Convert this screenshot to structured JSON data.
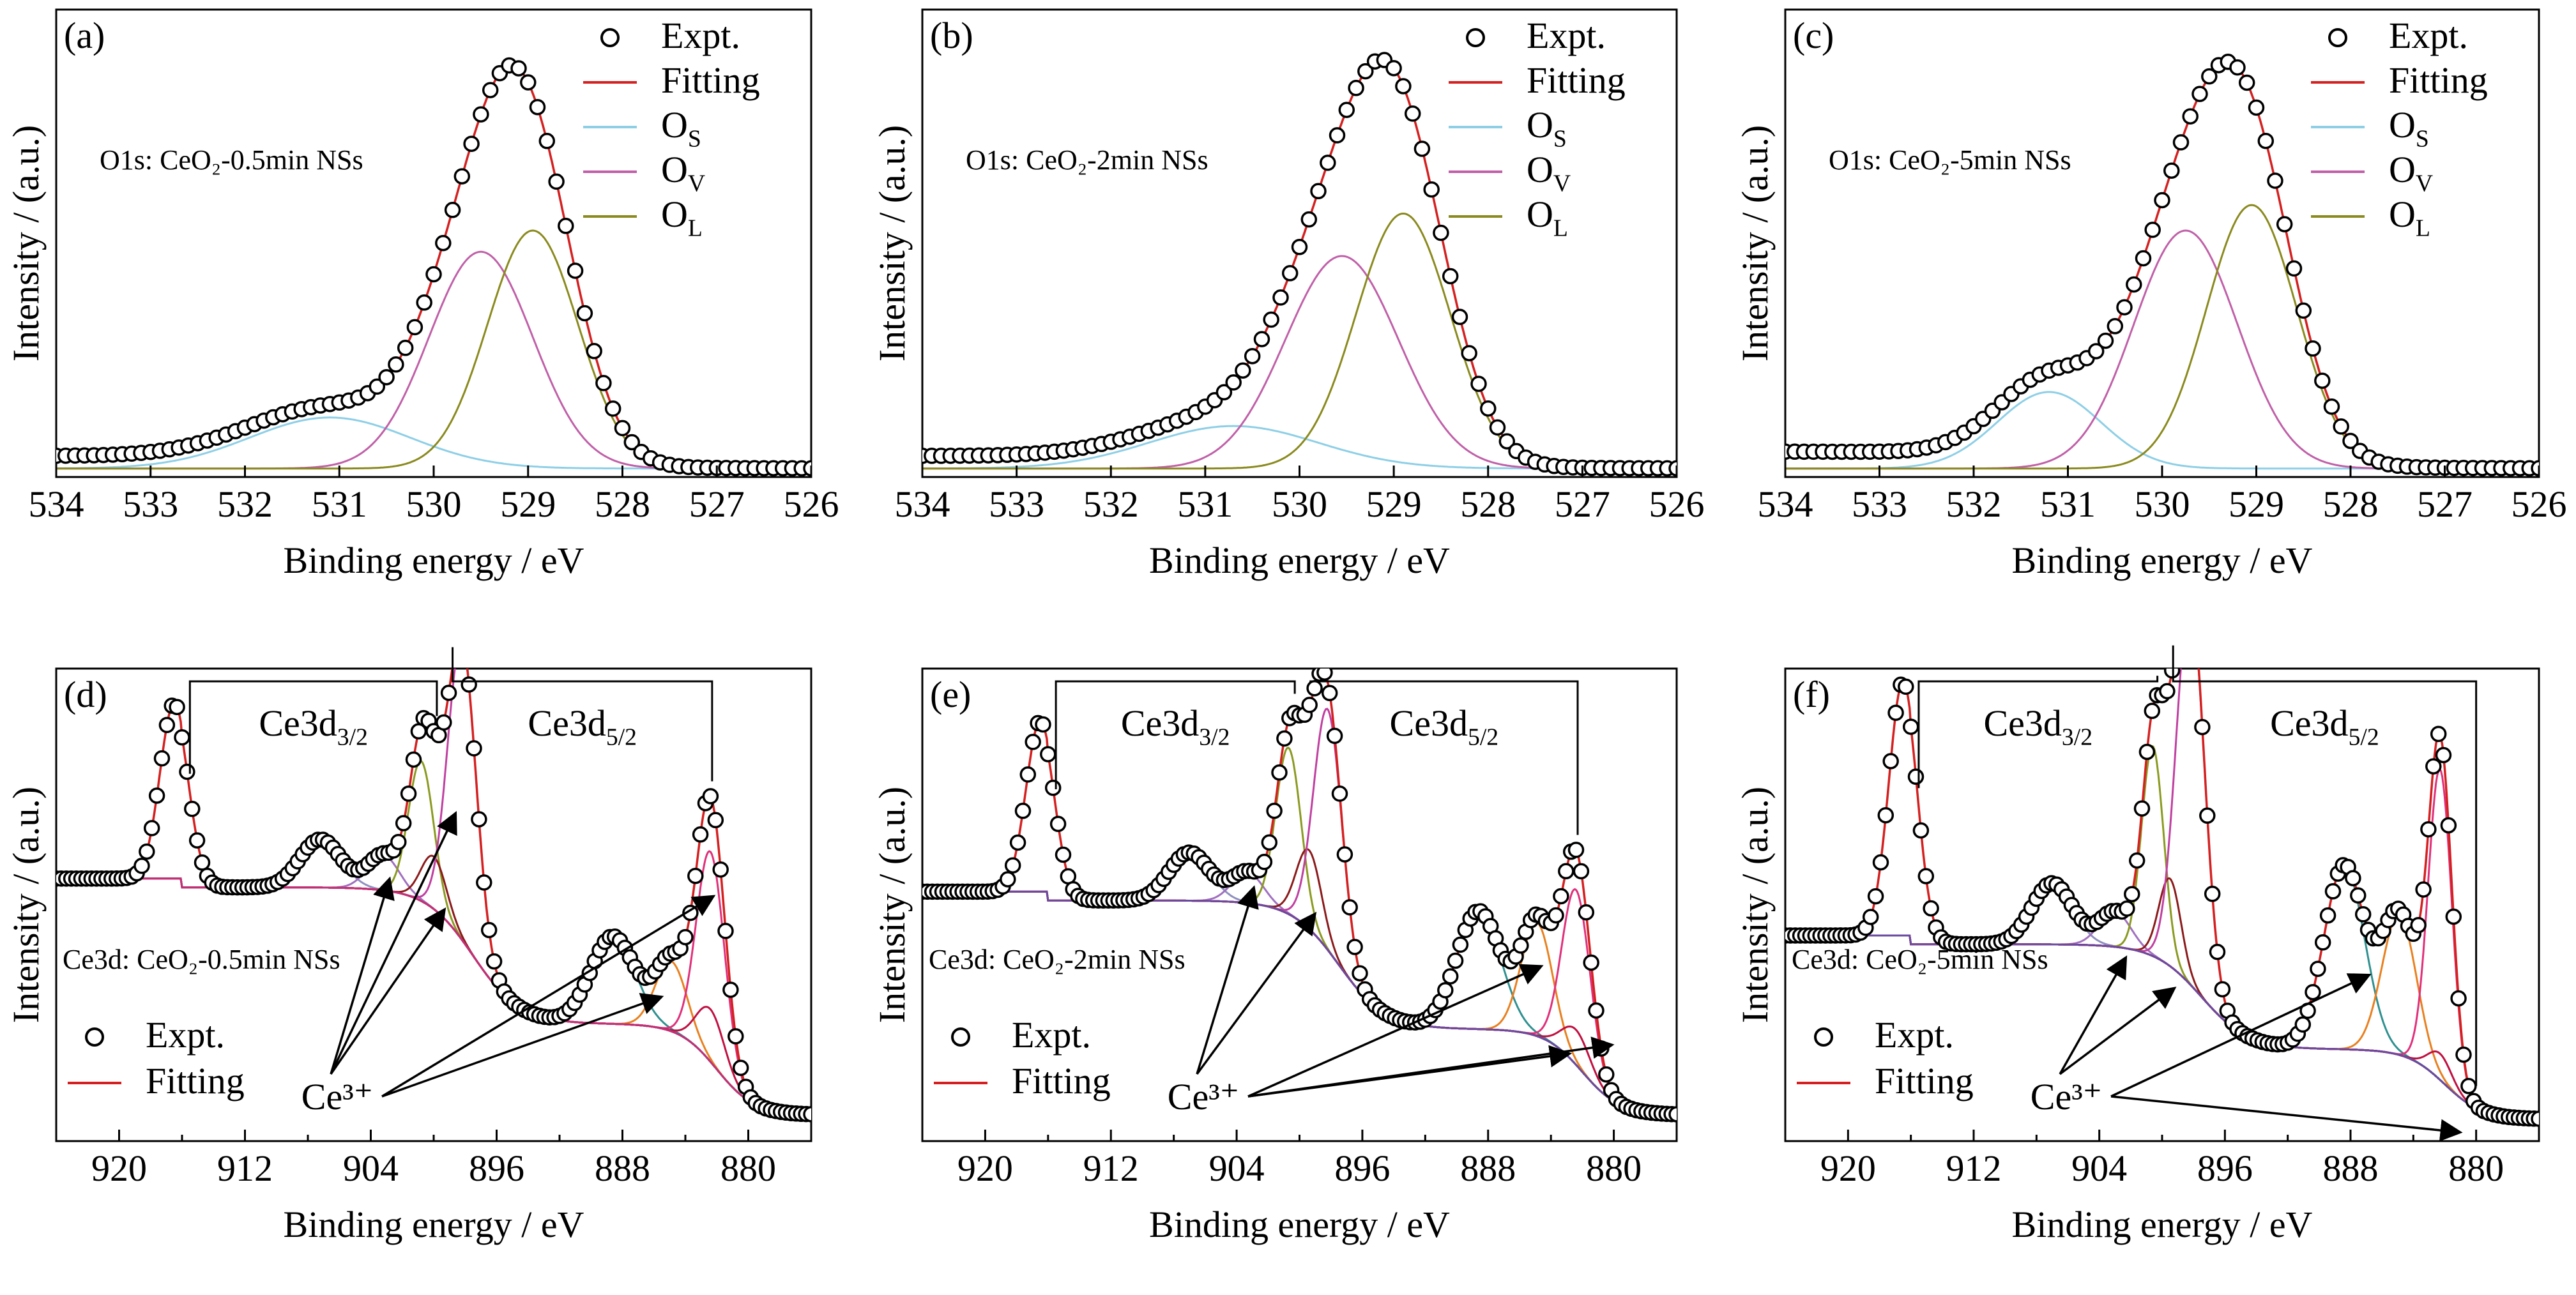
{
  "figure": {
    "panels": [
      "a",
      "b",
      "c",
      "d",
      "e",
      "f"
    ]
  },
  "chart_data": [
    {
      "id": "a",
      "type": "line",
      "panel_label": "(a)",
      "annotation": "O1s: CeO₂-0.5min NSs",
      "xlabel": "Binding energy / eV",
      "ylabel": "Intensity / (a.u.)",
      "xlim": [
        534,
        526
      ],
      "ylim": [
        0,
        1.1
      ],
      "xticks": [
        534,
        533,
        532,
        531,
        530,
        529,
        528,
        527,
        526
      ],
      "x_reversed": true,
      "legend": [
        "Expt.",
        "Fitting",
        "O_S",
        "O_V",
        "O_L"
      ],
      "legend_placement": "top-right",
      "background": {
        "a": 0.02,
        "b": 0.05
      },
      "components": [
        {
          "name": "O_S",
          "center": 531.1,
          "height": 0.12,
          "sigma": 0.85,
          "color": "#8ecfe6"
        },
        {
          "name": "O_V",
          "center": 529.5,
          "height": 0.51,
          "sigma": 0.55,
          "color": "#c060a8"
        },
        {
          "name": "O_L",
          "center": 528.95,
          "height": 0.56,
          "sigma": 0.48,
          "color": "#8a8a1e"
        }
      ],
      "expt_points": 80,
      "colors": {
        "fit": "#d42020",
        "expt": "#000000"
      }
    },
    {
      "id": "b",
      "type": "line",
      "panel_label": "(b)",
      "annotation": "O1s: CeO₂-2min NSs",
      "xlabel": "Binding energy / eV",
      "ylabel": "Intensity / (a.u.)",
      "xlim": [
        534,
        526
      ],
      "ylim": [
        0,
        1.1
      ],
      "xticks": [
        534,
        533,
        532,
        531,
        530,
        529,
        528,
        527,
        526
      ],
      "x_reversed": true,
      "legend": [
        "Expt.",
        "Fitting",
        "O_S",
        "O_V",
        "O_L"
      ],
      "legend_placement": "top-right",
      "background": {
        "a": 0.02,
        "b": 0.05
      },
      "components": [
        {
          "name": "O_S",
          "center": 530.7,
          "height": 0.1,
          "sigma": 0.9,
          "color": "#8ecfe6"
        },
        {
          "name": "O_V",
          "center": 529.55,
          "height": 0.5,
          "sigma": 0.6,
          "color": "#c060a8"
        },
        {
          "name": "O_L",
          "center": 528.9,
          "height": 0.6,
          "sigma": 0.5,
          "color": "#8a8a1e"
        }
      ],
      "expt_points": 80,
      "colors": {
        "fit": "#d42020",
        "expt": "#000000"
      }
    },
    {
      "id": "c",
      "type": "line",
      "panel_label": "(c)",
      "annotation": "O1s: CeO₂-5min NSs",
      "xlabel": "Binding energy / eV",
      "ylabel": "Intensity / (a.u.)",
      "xlim": [
        534,
        526
      ],
      "ylim": [
        0,
        1.1
      ],
      "xticks": [
        534,
        533,
        532,
        531,
        530,
        529,
        528,
        527,
        526
      ],
      "x_reversed": true,
      "legend": [
        "Expt.",
        "Fitting",
        "O_S",
        "O_V",
        "O_L"
      ],
      "legend_placement": "top-right",
      "background": {
        "a": 0.02,
        "b": 0.06
      },
      "components": [
        {
          "name": "O_S",
          "center": 531.2,
          "height": 0.18,
          "sigma": 0.55,
          "color": "#8ecfe6"
        },
        {
          "name": "O_V",
          "center": 529.75,
          "height": 0.56,
          "sigma": 0.55,
          "color": "#c060a8"
        },
        {
          "name": "O_L",
          "center": 529.05,
          "height": 0.62,
          "sigma": 0.48,
          "color": "#8a8a1e"
        }
      ],
      "expt_points": 80,
      "colors": {
        "fit": "#d42020",
        "expt": "#000000"
      }
    },
    {
      "id": "d",
      "type": "line",
      "panel_label": "(d)",
      "annotation": "Ce3d: CeO₂-0.5min NSs",
      "xlabel": "Binding energy / eV",
      "ylabel": "Intensity / (a.u.)",
      "xlim": [
        924,
        876
      ],
      "ylim": [
        0,
        1.08
      ],
      "xticks": [
        920,
        912,
        904,
        896,
        888,
        880
      ],
      "x_reversed": true,
      "legend": [
        "Expt.",
        "Fitting"
      ],
      "legend_placement": "bottom-left",
      "group_labels": [
        "Ce3d_3/2",
        "Ce3d_5/2"
      ],
      "group_spans": [
        [
          915.5,
          899.8
        ],
        [
          898.8,
          882.3
        ]
      ],
      "ce3_label": "Ce³⁺",
      "ce3_arrow_targets": [
        [
          902.8,
          0.6
        ],
        [
          899.3,
          0.53
        ],
        [
          898.6,
          0.75
        ],
        [
          885.5,
          0.33
        ],
        [
          882.2,
          0.56
        ]
      ],
      "background_curve": {
        "high": 0.58,
        "low": 0.06
      },
      "components": [
        {
          "center": 916.5,
          "height": 0.4,
          "sigma": 0.9,
          "color": "#c8d840"
        },
        {
          "center": 907.2,
          "height": 0.11,
          "sigma": 1.3,
          "color": "#9090c0"
        },
        {
          "center": 903.2,
          "height": 0.08,
          "sigma": 1.0,
          "color": "#a070c0"
        },
        {
          "center": 900.8,
          "height": 0.32,
          "sigma": 0.8,
          "color": "#8a9a20"
        },
        {
          "center": 900.0,
          "height": 0.12,
          "sigma": 0.8,
          "color": "#8b1a1a"
        },
        {
          "center": 898.2,
          "height": 0.68,
          "sigma": 0.9,
          "color": "#c040a0"
        },
        {
          "center": 888.6,
          "height": 0.2,
          "sigma": 1.4,
          "color": "#309090"
        },
        {
          "center": 884.9,
          "height": 0.16,
          "sigma": 1.0,
          "color": "#e88020"
        },
        {
          "center": 882.4,
          "height": 0.48,
          "sigma": 0.9,
          "color": "#e0307a"
        },
        {
          "center": 882.4,
          "height": 0.12,
          "sigma": 0.9,
          "color": "#c01040"
        }
      ],
      "colors": {
        "fit": "#d42020",
        "expt": "#000000",
        "bg": "#c03078"
      }
    },
    {
      "id": "e",
      "type": "line",
      "panel_label": "(e)",
      "annotation": "Ce3d: CeO₂-2min NSs",
      "xlabel": "Binding energy / eV",
      "ylabel": "Intensity / (a.u.)",
      "xlim": [
        924,
        876
      ],
      "ylim": [
        0,
        1.08
      ],
      "xticks": [
        920,
        912,
        904,
        896,
        888,
        880
      ],
      "x_reversed": true,
      "legend": [
        "Expt.",
        "Fitting"
      ],
      "legend_placement": "bottom-left",
      "group_labels": [
        "Ce3d_3/2",
        "Ce3d_5/2"
      ],
      "group_spans": [
        [
          915.5,
          900.3
        ],
        [
          899.3,
          882.3
        ]
      ],
      "ce3_label": "Ce³⁺",
      "ce3_arrow_targets": [
        [
          902.9,
          0.58
        ],
        [
          899.0,
          0.52
        ],
        [
          884.6,
          0.4
        ],
        [
          882.8,
          0.2
        ],
        [
          880.1,
          0.22
        ]
      ],
      "background_curve": {
        "high": 0.55,
        "low": 0.06
      },
      "components": [
        {
          "center": 916.5,
          "height": 0.39,
          "sigma": 0.9,
          "color": "#c8d840"
        },
        {
          "center": 907.0,
          "height": 0.11,
          "sigma": 1.3,
          "color": "#9090c0"
        },
        {
          "center": 903.3,
          "height": 0.07,
          "sigma": 1.0,
          "color": "#a070c0"
        },
        {
          "center": 900.7,
          "height": 0.38,
          "sigma": 0.8,
          "color": "#8a9a20"
        },
        {
          "center": 899.4,
          "height": 0.18,
          "sigma": 0.8,
          "color": "#8b1a1a"
        },
        {
          "center": 898.2,
          "height": 0.55,
          "sigma": 0.9,
          "color": "#c040a0"
        },
        {
          "center": 888.6,
          "height": 0.27,
          "sigma": 1.4,
          "color": "#309090"
        },
        {
          "center": 884.9,
          "height": 0.26,
          "sigma": 1.0,
          "color": "#e88020"
        },
        {
          "center": 882.4,
          "height": 0.4,
          "sigma": 0.9,
          "color": "#e0307a"
        },
        {
          "center": 882.4,
          "height": 0.08,
          "sigma": 0.9,
          "color": "#c01040"
        }
      ],
      "colors": {
        "fit": "#d42020",
        "expt": "#000000",
        "bg": "#6a4aa0"
      }
    },
    {
      "id": "f",
      "type": "line",
      "panel_label": "(f)",
      "annotation": "Ce3d: CeO₂-5min NSs",
      "xlabel": "Binding energy / eV",
      "ylabel": "Intensity / (a.u.)",
      "xlim": [
        924,
        876
      ],
      "ylim": [
        0,
        1.08
      ],
      "xticks": [
        920,
        912,
        904,
        896,
        888,
        880
      ],
      "x_reversed": true,
      "legend": [
        "Expt.",
        "Fitting"
      ],
      "legend_placement": "bottom-left",
      "group_labels": [
        "Ce3d_3/2",
        "Ce3d_5/2"
      ],
      "group_spans": [
        [
          915.5,
          900.3
        ],
        [
          899.3,
          880.0
        ]
      ],
      "ce3_label": "Ce³⁺",
      "ce3_arrow_targets": [
        [
          902.3,
          0.42
        ],
        [
          899.2,
          0.35
        ],
        [
          886.8,
          0.38
        ],
        [
          881.0,
          0.02
        ]
      ],
      "background_curve": {
        "high": 0.45,
        "low": 0.05
      },
      "components": [
        {
          "center": 916.5,
          "height": 0.58,
          "sigma": 0.9,
          "color": "#c8d840"
        },
        {
          "center": 907.0,
          "height": 0.14,
          "sigma": 1.3,
          "color": "#9090c0"
        },
        {
          "center": 903.0,
          "height": 0.08,
          "sigma": 1.0,
          "color": "#a070c0"
        },
        {
          "center": 900.6,
          "height": 0.48,
          "sigma": 0.7,
          "color": "#8a9a20"
        },
        {
          "center": 899.5,
          "height": 0.2,
          "sigma": 0.7,
          "color": "#8b1a1a"
        },
        {
          "center": 898.2,
          "height": 0.88,
          "sigma": 0.9,
          "color": "#c040a0"
        },
        {
          "center": 888.4,
          "height": 0.42,
          "sigma": 1.3,
          "color": "#309090"
        },
        {
          "center": 884.9,
          "height": 0.32,
          "sigma": 1.1,
          "color": "#e88020"
        },
        {
          "center": 882.3,
          "height": 0.71,
          "sigma": 0.75,
          "color": "#e0307a"
        },
        {
          "center": 882.3,
          "height": 0.06,
          "sigma": 0.75,
          "color": "#c01040"
        }
      ],
      "colors": {
        "fit": "#d42020",
        "expt": "#000000",
        "bg": "#6a4aa0"
      }
    }
  ]
}
